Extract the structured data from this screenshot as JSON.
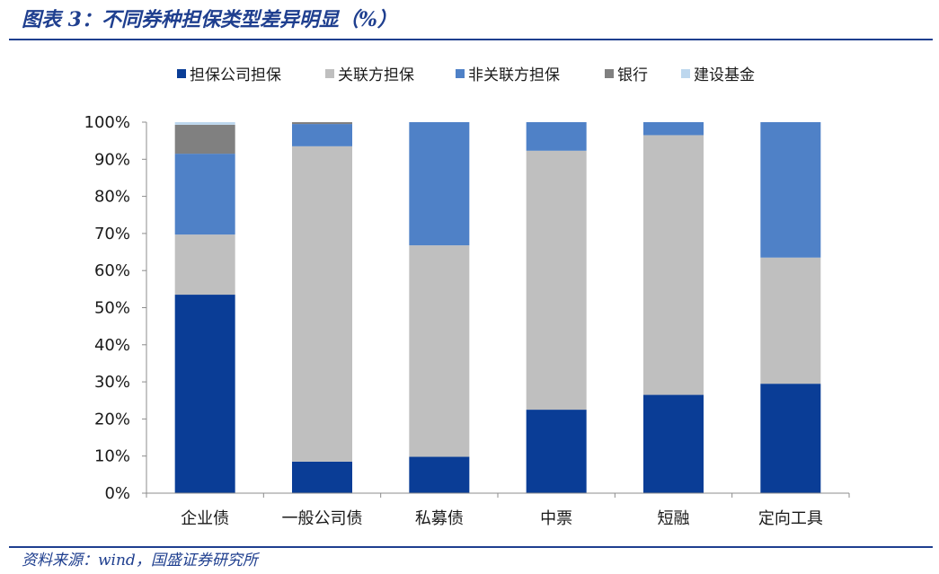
{
  "title": "图表 3：不同券种担保类型差异明显（%）",
  "source": "资料来源：wind，国盛证券研究所",
  "chart_data": {
    "type": "bar",
    "stacked": true,
    "categories": [
      "企业债",
      "一般公司债",
      "私募债",
      "中票",
      "短融",
      "定向工具"
    ],
    "yticks": [
      "0%",
      "10%",
      "20%",
      "30%",
      "40%",
      "50%",
      "60%",
      "70%",
      "80%",
      "90%",
      "100%"
    ],
    "ylim": [
      0,
      100
    ],
    "legend_position": "top",
    "series": [
      {
        "name": "担保公司担保",
        "color": "#0a3d96",
        "values": [
          53.5,
          8.5,
          9.8,
          22.5,
          26.5,
          29.5
        ]
      },
      {
        "name": "关联方担保",
        "color": "#bfbfbf",
        "values": [
          16.2,
          85.0,
          57.0,
          69.8,
          70.0,
          34.0
        ]
      },
      {
        "name": "非关联方担保",
        "color": "#4f81c7",
        "values": [
          21.8,
          6.0,
          33.2,
          7.7,
          3.5,
          36.5
        ]
      },
      {
        "name": "银行",
        "color": "#808080",
        "values": [
          7.8,
          0.5,
          0.0,
          0.0,
          0.0,
          0.0
        ]
      },
      {
        "name": "建设基金",
        "color": "#bdd7ee",
        "values": [
          0.7,
          0.0,
          0.0,
          0.0,
          0.0,
          0.0
        ]
      }
    ]
  }
}
